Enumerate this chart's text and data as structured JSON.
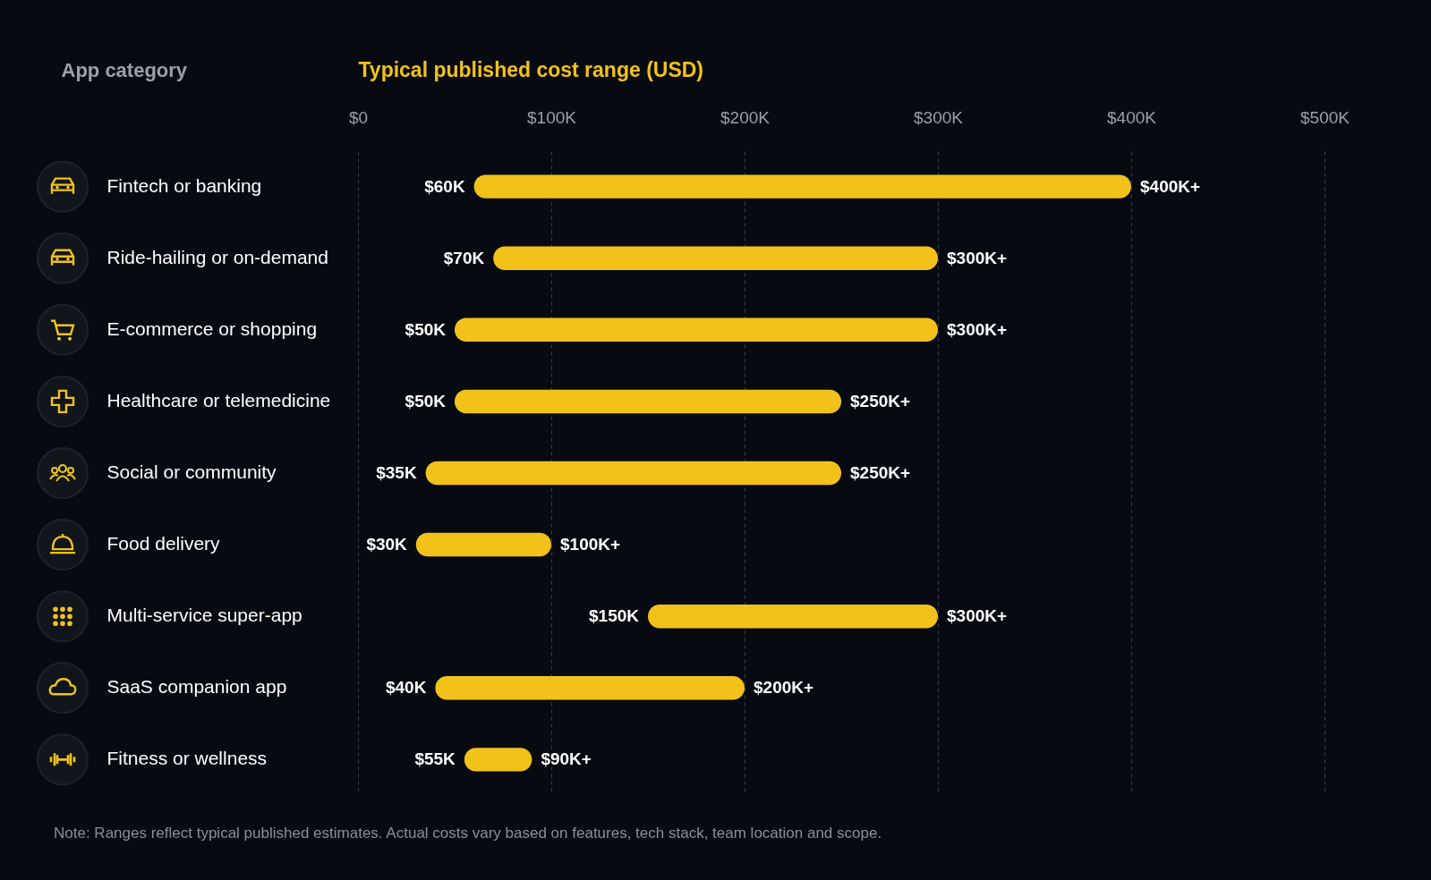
{
  "chart_data": {
    "type": "bar",
    "orientation": "horizontal",
    "xlabel": "Typical published cost range (USD)",
    "ylabel": "App category",
    "categories": [
      "Fintech or banking",
      "Ride-hailing or on-demand",
      "E-commerce or shopping",
      "Healthcare or telemedicine",
      "Social or community",
      "Food delivery",
      "Multi-service super-app",
      "SaaS companion app",
      "Fitness or wellness"
    ],
    "base": [
      60,
      70,
      50,
      50,
      35,
      30,
      150,
      40,
      55
    ],
    "values": [
      340,
      230,
      250,
      200,
      215,
      70,
      150,
      160,
      35
    ],
    "value_labels": [
      "$400K+",
      "$300K+",
      "$300K+",
      "$250K+",
      "$250K+",
      "$100K+",
      "$300K+",
      "$200K+",
      "$90K+"
    ],
    "color": "#f2c21b",
    "xlim": [
      0,
      500
    ],
    "xticks": [
      {
        "value": 0,
        "label": "$0"
      },
      {
        "value": 100,
        "label": "$100K"
      },
      {
        "value": 200,
        "label": "$200K"
      },
      {
        "value": 300,
        "label": "$300K"
      },
      {
        "value": 400,
        "label": "$400K"
      },
      {
        "value": 500,
        "label": "$500K"
      }
    ],
    "grid": "x",
    "annotations": [
      {
        "text": "$60K",
        "x": 60,
        "y": "Fintech or banking"
      },
      {
        "text": "$70K",
        "x": 70,
        "y": "Ride-hailing or on-demand"
      },
      {
        "text": "$50K",
        "x": 50,
        "y": "E-commerce or shopping"
      },
      {
        "text": "$50K",
        "x": 50,
        "y": "Healthcare or telemedicine"
      },
      {
        "text": "$35K",
        "x": 35,
        "y": "Social or community"
      },
      {
        "text": "$30K",
        "x": 30,
        "y": "Food delivery"
      },
      {
        "text": "$150K",
        "x": 150,
        "y": "Multi-service super-app"
      },
      {
        "text": "$40K",
        "x": 40,
        "y": "SaaS companion app"
      },
      {
        "text": "$55K",
        "x": 55,
        "y": "Fitness or wellness"
      },
      "Note: Ranges reflect typical published estimates. Actual costs vary based on features, tech stack, team location and scope."
    ]
  }
}
